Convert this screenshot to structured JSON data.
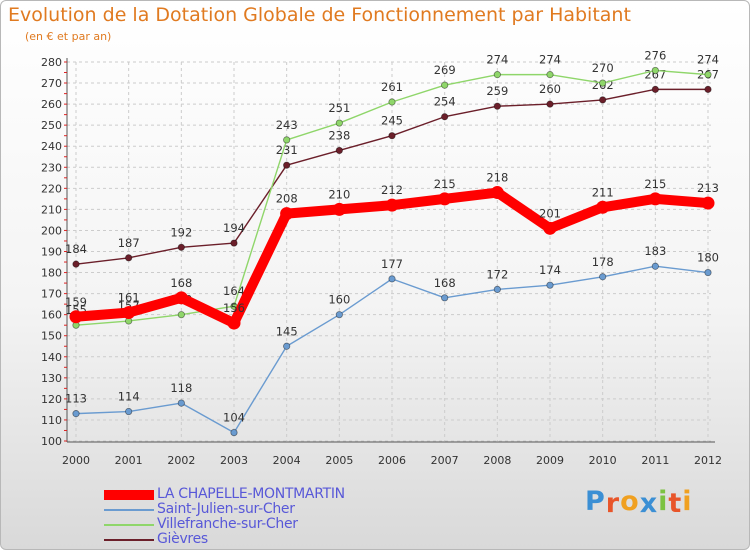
{
  "title": "Evolution de la Dotation Globale de Fonctionnement par Habitant",
  "subtitle": "(en € et par an)",
  "brand": {
    "letters": [
      "P",
      "r",
      "o",
      "x",
      "i",
      "t",
      "i"
    ],
    "colors": [
      "#3b8fd4",
      "#e8552a",
      "#f0a020",
      "#3b8fd4",
      "#7cc242",
      "#e8552a",
      "#f0a020"
    ]
  },
  "chart_data": {
    "type": "line",
    "title": "Evolution de la Dotation Globale de Fonctionnement par Habitant",
    "subtitle": "(en € et par an)",
    "xlabel": "",
    "ylabel": "",
    "x": [
      "2000",
      "2001",
      "2002",
      "2003",
      "2004",
      "2005",
      "2006",
      "2007",
      "2008",
      "2009",
      "2010",
      "2011",
      "2012"
    ],
    "ylim": [
      100,
      280
    ],
    "yticks": [
      100,
      110,
      120,
      130,
      140,
      150,
      160,
      170,
      180,
      190,
      200,
      210,
      220,
      230,
      240,
      250,
      260,
      270,
      280
    ],
    "grid": true,
    "legend_position": "bottom-left",
    "series": [
      {
        "name": "Gièvres",
        "color": "#6b1f2a",
        "emphasis": false,
        "values": [
          184,
          187,
          192,
          194,
          231,
          238,
          245,
          254,
          259,
          260,
          262,
          267,
          267
        ]
      },
      {
        "name": "Villefranche-sur-Cher",
        "color": "#8fd66a",
        "emphasis": false,
        "values": [
          155,
          157,
          160,
          164,
          243,
          251,
          261,
          269,
          274,
          274,
          270,
          276,
          274
        ]
      },
      {
        "name": "Saint-Julien-sur-Cher",
        "color": "#6a9bd0",
        "emphasis": false,
        "values": [
          113,
          114,
          118,
          104,
          145,
          160,
          177,
          168,
          172,
          174,
          178,
          183,
          180
        ]
      },
      {
        "name": "LA CHAPELLE-MONTMARTIN",
        "color": "#ff0000",
        "emphasis": true,
        "values": [
          159,
          161,
          168,
          156,
          208,
          210,
          212,
          215,
          218,
          201,
          211,
          215,
          213
        ]
      }
    ],
    "legend_order": [
      "LA CHAPELLE-MONTMARTIN",
      "Saint-Julien-sur-Cher",
      "Villefranche-sur-Cher",
      "Gièvres"
    ]
  }
}
